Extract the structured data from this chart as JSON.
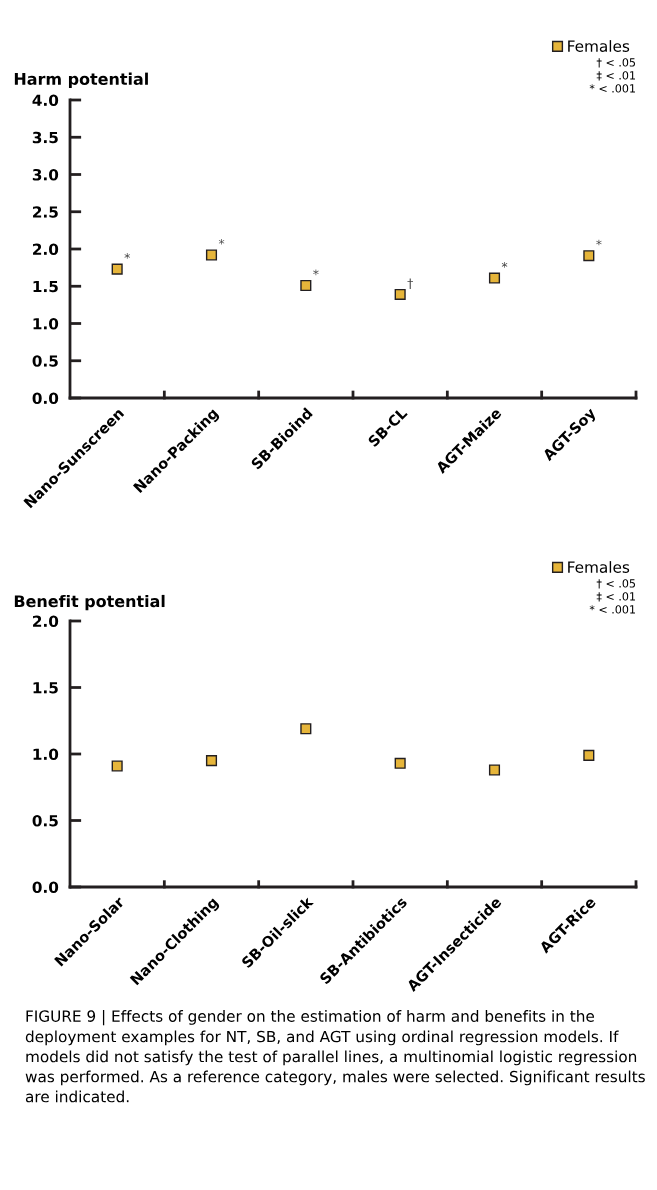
{
  "chart_data": [
    {
      "type": "scatter",
      "title": "Harm potential",
      "categories": [
        "Nano-Sunscreen",
        "Nano-Packing",
        "SB-Bioind",
        "SB-CL",
        "AGT-Maize",
        "AGT-Soy"
      ],
      "series": [
        {
          "name": "Females",
          "color": "#e6b53a",
          "values": [
            1.73,
            1.92,
            1.51,
            1.39,
            1.61,
            1.91
          ]
        }
      ],
      "ylim": [
        0,
        4
      ],
      "yticks": [
        {
          "value": 0,
          "label": "0.0"
        },
        {
          "value": 0.5,
          "label": "0.5"
        },
        {
          "value": 1,
          "label": "1.0"
        },
        {
          "value": 1.5,
          "label": "1.5"
        },
        {
          "value": 2,
          "label": "2.0"
        },
        {
          "value": 2.5,
          "label": "2.5"
        },
        {
          "value": 3,
          "label": "3.0"
        },
        {
          "value": 3.5,
          "label": "3.5"
        },
        {
          "value": 4,
          "label": "4.0"
        }
      ],
      "marker": "square",
      "grid": false,
      "legend": "top right",
      "annotations": [
        "† < .05",
        "‡ < .01",
        "* < .001",
        {
          "text": "*",
          "x": "Nano-Sunscreen",
          "y": 1.73
        },
        {
          "text": "*",
          "x": "Nano-Packing",
          "y": 1.92
        },
        {
          "text": "*",
          "x": "SB-Bioind",
          "y": 1.51
        },
        {
          "text": "†",
          "x": "SB-CL",
          "y": 1.39
        },
        {
          "text": "*",
          "x": "AGT-Maize",
          "y": 1.61
        },
        {
          "text": "*",
          "x": "AGT-Soy",
          "y": 1.91
        }
      ]
    },
    {
      "type": "scatter",
      "title": "Benefit potential",
      "categories": [
        "Nano-Solar",
        "Nano-Clothing",
        "SB-Oil-slick",
        "SB-Antibiotics",
        "AGT-Insecticide",
        "AGT-Rice"
      ],
      "series": [
        {
          "name": "Females",
          "color": "#e6b53a",
          "values": [
            0.91,
            0.95,
            1.19,
            0.93,
            0.88,
            0.99
          ]
        }
      ],
      "ylim": [
        0,
        2
      ],
      "yticks": [
        {
          "value": 0,
          "label": "0.0"
        },
        {
          "value": 0.5,
          "label": "0.5"
        },
        {
          "value": 1,
          "label": "1.0"
        },
        {
          "value": 1.5,
          "label": "1.5"
        },
        {
          "value": 2,
          "label": "2.0"
        }
      ],
      "marker": "square",
      "grid": false,
      "legend": "top right",
      "annotations": [
        "† < .05",
        "‡ < .01",
        "* < .001",
        "FIGURE 9 | Effects of gender on the estimation of harm and benefits in the deployment examples for NT, SB, and AGT using ordinal regression models. If models did not satisfy the test of parallel lines, a multinomial logistic regression was performed. As a reference category, males were selected. Significant results are indicated."
      ]
    }
  ]
}
